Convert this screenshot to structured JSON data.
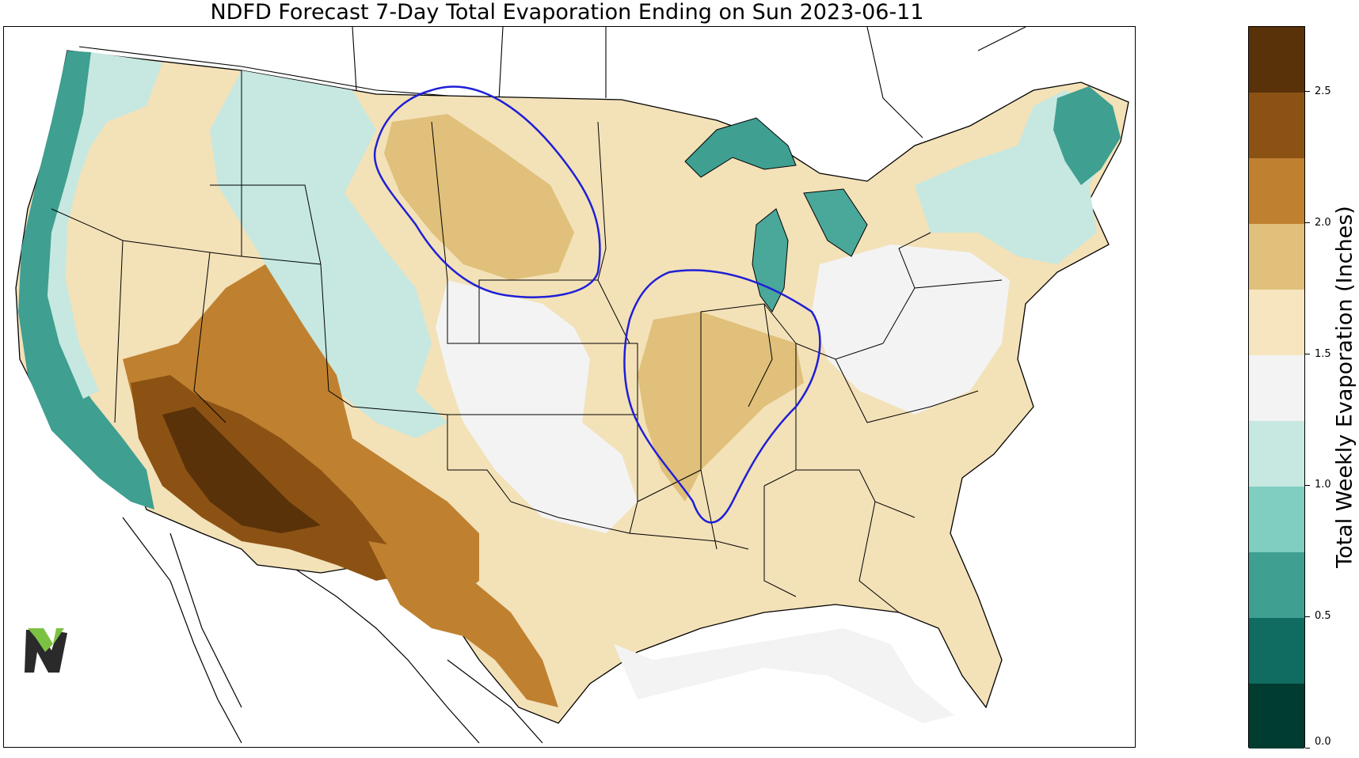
{
  "header": {
    "title": "NDFD Forecast 7-Day Total Evaporation Ending on Sun 2023-06-11"
  },
  "map": {
    "background_color": "#ffffff",
    "state_line_color": "#000000",
    "annotation_color": "#1f1fd6",
    "water_color": "#4aa89a",
    "icon": "logo-n-icon",
    "regions": [
      {
        "id": "west-coast",
        "level_inches": 0.75,
        "color": "#3f9f91"
      },
      {
        "id": "southwest-desert",
        "level_inches": 2.5,
        "color": "#8c5214"
      },
      {
        "id": "southwest",
        "level_inches": 2.25,
        "color": "#bf8130"
      },
      {
        "id": "texas",
        "level_inches": 1.75,
        "color": "#f3e1b8"
      },
      {
        "id": "northern-plains",
        "level_inches": 1.75,
        "color": "#f3e1b8"
      },
      {
        "id": "corn-belt",
        "level_inches": 1.75,
        "color": "#f3e1b8"
      },
      {
        "id": "rockies",
        "level_inches": 1.25,
        "color": "#c6e8e0"
      },
      {
        "id": "northeast",
        "level_inches": 1.25,
        "color": "#c6e8e0"
      },
      {
        "id": "great-lakes",
        "level_inches": 0.75,
        "color": "#3f9f91"
      },
      {
        "id": "mid-south",
        "level_inches": 1.75,
        "color": "#f3e1b8"
      },
      {
        "id": "southeast",
        "level_inches": 1.75,
        "color": "#f3e1b8"
      }
    ]
  },
  "colorbar": {
    "title": "Total Weekly Evaporation (Inches)",
    "ticks": [
      "0.0",
      "0.5",
      "1.0",
      "1.5",
      "2.0",
      "2.5"
    ],
    "tick_values": [
      0.0,
      0.5,
      1.0,
      1.5,
      2.0,
      2.5
    ],
    "vmin": 0.0,
    "vmax": 2.75,
    "colors": [
      "#003c30",
      "#106b60",
      "#3f9f91",
      "#80cdc1",
      "#c6e8e0",
      "#f3f3f3",
      "#f6e5be",
      "#e0c07a",
      "#bf8130",
      "#8c5214",
      "#5a320a"
    ]
  }
}
